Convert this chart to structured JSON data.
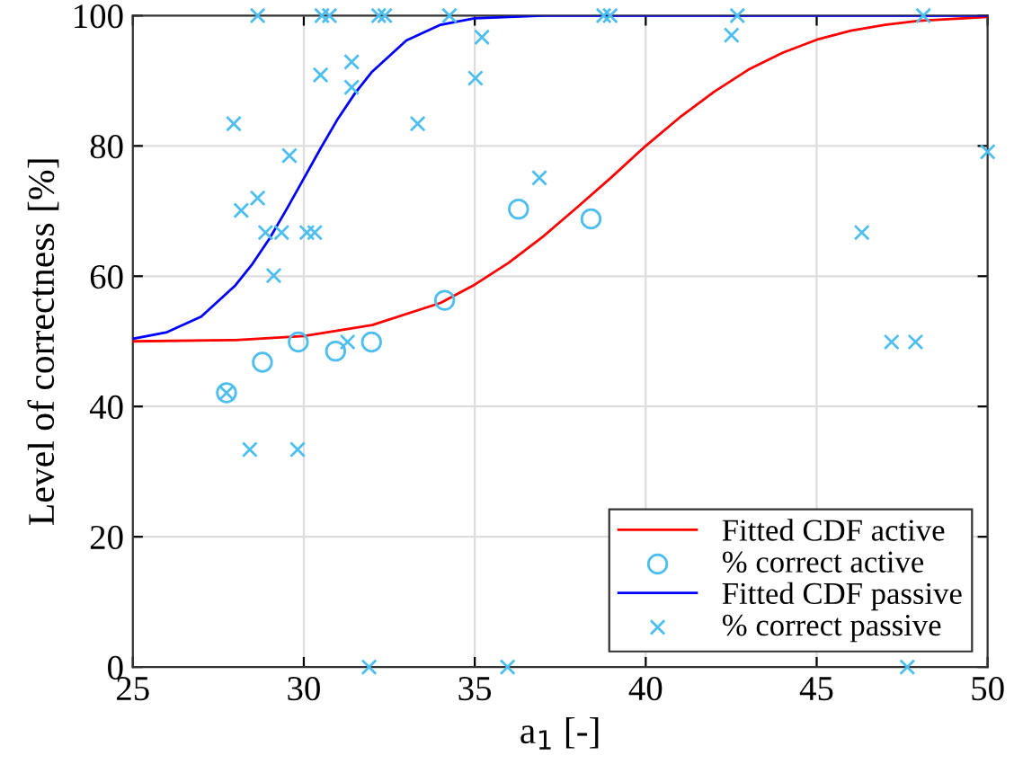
{
  "chart_data": {
    "type": "scatter",
    "xlabel": "a$_{1}$ [-]",
    "ylabel": "Level of correctness [%]",
    "xlim": [
      25,
      50
    ],
    "xticks": [
      25,
      30,
      35,
      40,
      45,
      50
    ],
    "ylim": [
      0,
      100
    ],
    "yticks": [
      0,
      20,
      40,
      60,
      80,
      100
    ],
    "grid": true,
    "legend": "bottom right",
    "series": [
      {
        "name": "Fitted CDF active",
        "type": "line",
        "color": "#ff0000",
        "marker": "none",
        "line_style": "solid",
        "x": [
          25,
          28,
          30,
          32,
          34,
          35,
          36,
          37,
          38,
          39,
          40,
          41,
          42,
          43,
          44,
          45,
          46,
          47,
          48,
          50
        ],
        "values": [
          50.0,
          50.2,
          50.8,
          52.5,
          55.9,
          58.7,
          62.1,
          66.1,
          70.6,
          75.2,
          80.0,
          84.4,
          88.3,
          91.7,
          94.3,
          96.3,
          97.7,
          98.6,
          99.2,
          99.8
        ]
      },
      {
        "name": "% correct active",
        "color": "#4dbeee",
        "marker": "circle",
        "x": [
          27.74,
          28.79,
          29.84,
          30.93,
          31.98,
          34.12,
          36.28,
          38.4
        ],
        "values": [
          42.1,
          46.8,
          49.9,
          48.5,
          49.9,
          56.3,
          70.3,
          68.8
        ]
      },
      {
        "name": "Fitted CDF passive",
        "type": "line",
        "color": "#0000ff",
        "marker": "none",
        "line_style": "solid",
        "x": [
          25,
          26,
          27,
          28,
          28.5,
          29,
          29.5,
          30,
          30.5,
          31,
          31.5,
          32,
          33,
          34,
          35,
          37,
          40,
          50
        ],
        "values": [
          50.4,
          51.4,
          53.8,
          58.6,
          61.9,
          65.8,
          70.3,
          75.0,
          79.7,
          84.2,
          88.1,
          91.4,
          96.2,
          98.6,
          99.6,
          100.0,
          100.0,
          100.0
        ]
      },
      {
        "name": "% correct passive",
        "color": "#4dbeee",
        "marker": "cross",
        "x": [
          27.74,
          27.95,
          28.17,
          28.42,
          28.65,
          28.65,
          28.88,
          29.12,
          29.35,
          29.58,
          29.82,
          30.09,
          30.32,
          30.49,
          30.53,
          30.75,
          31.28,
          31.4,
          31.4,
          31.91,
          32.19,
          32.37,
          33.33,
          34.26,
          35.02,
          35.21,
          35.96,
          36.89,
          38.77,
          38.96,
          42.51,
          42.68,
          46.32,
          47.19,
          47.65,
          47.89,
          48.12,
          50.0
        ],
        "values": [
          42.1,
          83.4,
          70.1,
          33.4,
          100,
          72.0,
          66.7,
          60.1,
          66.7,
          78.5,
          33.4,
          66.7,
          66.7,
          90.9,
          100,
          100,
          49.9,
          92.9,
          89.0,
          0,
          100,
          100,
          83.4,
          100,
          90.4,
          96.7,
          0,
          75.1,
          100,
          100,
          97.0,
          100,
          66.7,
          49.9,
          0,
          49.9,
          100,
          79.1
        ]
      }
    ]
  }
}
